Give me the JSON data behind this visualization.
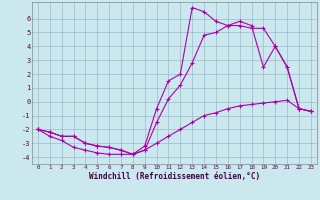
{
  "xlabel": "Windchill (Refroidissement éolien,°C)",
  "bg_color": "#cce8ef",
  "line_color": "#aa00aa",
  "grid_color": "#99bbcc",
  "xlim": [
    -0.5,
    23.5
  ],
  "ylim": [
    -4.5,
    7.2
  ],
  "yticks": [
    -4,
    -3,
    -2,
    -1,
    0,
    1,
    2,
    3,
    4,
    5,
    6
  ],
  "xticks": [
    0,
    1,
    2,
    3,
    4,
    5,
    6,
    7,
    8,
    9,
    10,
    11,
    12,
    13,
    14,
    15,
    16,
    17,
    18,
    19,
    20,
    21,
    22,
    23
  ],
  "line1_x": [
    0,
    1,
    2,
    3,
    4,
    5,
    6,
    7,
    8,
    9,
    10,
    11,
    12,
    13,
    14,
    15,
    16,
    17,
    18,
    19,
    20,
    21,
    22,
    23
  ],
  "line1_y": [
    -2.0,
    -2.5,
    -2.8,
    -3.3,
    -3.5,
    -3.7,
    -3.8,
    -3.8,
    -3.8,
    -3.2,
    -0.5,
    1.5,
    2.0,
    6.8,
    6.5,
    5.8,
    5.5,
    5.5,
    5.3,
    5.3,
    4.0,
    2.5,
    -0.5,
    -0.7
  ],
  "line2_x": [
    0,
    1,
    2,
    3,
    4,
    5,
    6,
    7,
    8,
    9,
    10,
    11,
    12,
    13,
    14,
    15,
    16,
    17,
    18,
    19,
    20,
    21,
    22,
    23
  ],
  "line2_y": [
    -2.0,
    -2.2,
    -2.5,
    -2.5,
    -3.0,
    -3.2,
    -3.3,
    -3.5,
    -3.8,
    -3.5,
    -3.0,
    -2.5,
    -2.0,
    -1.5,
    -1.0,
    -0.8,
    -0.5,
    -0.3,
    -0.2,
    -0.1,
    0.0,
    0.1,
    -0.5,
    -0.7
  ],
  "line3_x": [
    0,
    1,
    2,
    3,
    4,
    5,
    6,
    7,
    8,
    9,
    10,
    11,
    12,
    13,
    14,
    15,
    16,
    17,
    18,
    19,
    20,
    21,
    22,
    23
  ],
  "line3_y": [
    -2.0,
    -2.2,
    -2.5,
    -2.5,
    -3.0,
    -3.2,
    -3.3,
    -3.5,
    -3.8,
    -3.5,
    -1.5,
    0.2,
    1.2,
    2.8,
    4.8,
    5.0,
    5.5,
    5.8,
    5.5,
    2.5,
    4.0,
    2.5,
    -0.5,
    -0.7
  ]
}
